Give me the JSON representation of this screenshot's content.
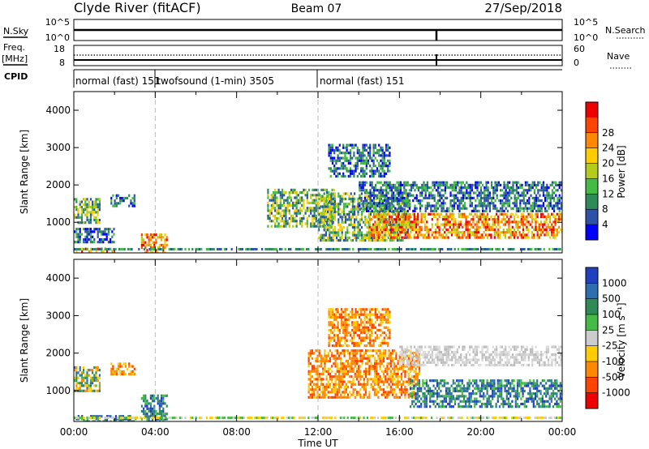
{
  "header": {
    "station": "Clyde River (fitACF)",
    "beam": "Beam 07",
    "date": "27/Sep/2018"
  },
  "strip_noise": {
    "left_label": "N.Sky",
    "right_label": "N.Search",
    "left_ticks": [
      "10^5",
      "10^0"
    ],
    "right_ticks": [
      "10^5",
      "10^0"
    ],
    "dip_time": "17:50"
  },
  "strip_freq": {
    "left_label_1": "Freq.",
    "left_label_2": "[MHz]",
    "right_label": "Nave",
    "left_ticks": [
      "18",
      "8"
    ],
    "right_ticks": [
      "60",
      "0"
    ]
  },
  "cpid": {
    "label": "CPID",
    "segments": [
      {
        "text": "normal (fast)",
        "id": "151",
        "start": "00:00"
      },
      {
        "text": "twofsound (1-min)",
        "id": "3505",
        "start": "04:00"
      },
      {
        "text": "normal (fast)",
        "id": "151",
        "start": "12:00"
      }
    ]
  },
  "chart_data": [
    {
      "type": "heatmap",
      "name": "power",
      "ylabel": "Slant Range [km]",
      "y_ticks": [
        "1000",
        "2000",
        "3000",
        "4000"
      ],
      "ylim": [
        180,
        4500
      ],
      "colorbar_label": "Power [dB]",
      "colorbar_ticks": [
        "4",
        "8",
        "12",
        "16",
        "20",
        "24",
        "28"
      ],
      "colors": [
        "#0000ff",
        "#2c52a8",
        "#2e8b57",
        "#44bb44",
        "#b3cc1a",
        "#ffcc00",
        "#ff8800",
        "#ff4400",
        "#ee0000"
      ],
      "echo_regions": [
        {
          "t": [
            0.1,
            2.0
          ],
          "range": [
            180,
            320
          ],
          "level": "high"
        },
        {
          "t": [
            3.3,
            4.6
          ],
          "range": [
            180,
            700
          ],
          "level": "high"
        },
        {
          "t": [
            0.0,
            1.3
          ],
          "range": [
            1000,
            1650
          ],
          "level": "medium"
        },
        {
          "t": [
            1.8,
            3.0
          ],
          "range": [
            1450,
            1750
          ],
          "level": "low"
        },
        {
          "t": [
            0.0,
            2.0
          ],
          "range": [
            450,
            850
          ],
          "level": "low"
        },
        {
          "t": [
            9.5,
            12.8
          ],
          "range": [
            900,
            1900
          ],
          "level": "medium"
        },
        {
          "t": [
            12.0,
            16.5
          ],
          "range": [
            500,
            1800
          ],
          "level": "medium"
        },
        {
          "t": [
            14.5,
            24.0
          ],
          "range": [
            600,
            1250
          ],
          "level": "high"
        },
        {
          "t": [
            14.0,
            24.0
          ],
          "range": [
            1300,
            2100
          ],
          "level": "low"
        },
        {
          "t": [
            12.5,
            15.5
          ],
          "range": [
            2200,
            3100
          ],
          "level": "low"
        }
      ]
    },
    {
      "type": "heatmap",
      "name": "velocity",
      "ylabel": "Slant Range [km]",
      "y_ticks": [
        "1000",
        "2000",
        "3000",
        "4000"
      ],
      "ylim": [
        180,
        4500
      ],
      "xlabel": "Time UT",
      "x_ticks": [
        "00:00",
        "04:00",
        "08:00",
        "12:00",
        "16:00",
        "20:00",
        "00:00"
      ],
      "xlim": [
        "00:00",
        "24:00"
      ],
      "colorbar_label": "Velocity [m s⁻¹]",
      "colorbar_ticks": [
        "1000",
        "500",
        "100",
        "25",
        "-25",
        "-100",
        "-500",
        "-1000"
      ],
      "colors": [
        "#2040c0",
        "#2e6eb0",
        "#2e8b57",
        "#44bb44",
        "#cccccc",
        "#ffcc00",
        "#ff8800",
        "#ff4400",
        "#ee0000"
      ],
      "echo_regions": [
        {
          "t": [
            0.0,
            1.3
          ],
          "range": [
            1000,
            1650
          ],
          "level": "mixed"
        },
        {
          "t": [
            1.8,
            3.0
          ],
          "range": [
            1450,
            1750
          ],
          "level": "away"
        },
        {
          "t": [
            3.3,
            4.6
          ],
          "range": [
            200,
            900
          ],
          "level": "toward"
        },
        {
          "t": [
            0.1,
            3.0
          ],
          "range": [
            180,
            350
          ],
          "level": "toward"
        },
        {
          "t": [
            11.5,
            17.0
          ],
          "range": [
            800,
            2100
          ],
          "level": "away"
        },
        {
          "t": [
            16.5,
            24.0
          ],
          "range": [
            600,
            1300
          ],
          "level": "toward"
        },
        {
          "t": [
            16.0,
            24.0
          ],
          "range": [
            1700,
            2200
          ],
          "level": "zero"
        },
        {
          "t": [
            12.5,
            15.5
          ],
          "range": [
            2200,
            3200
          ],
          "level": "away"
        }
      ]
    }
  ]
}
